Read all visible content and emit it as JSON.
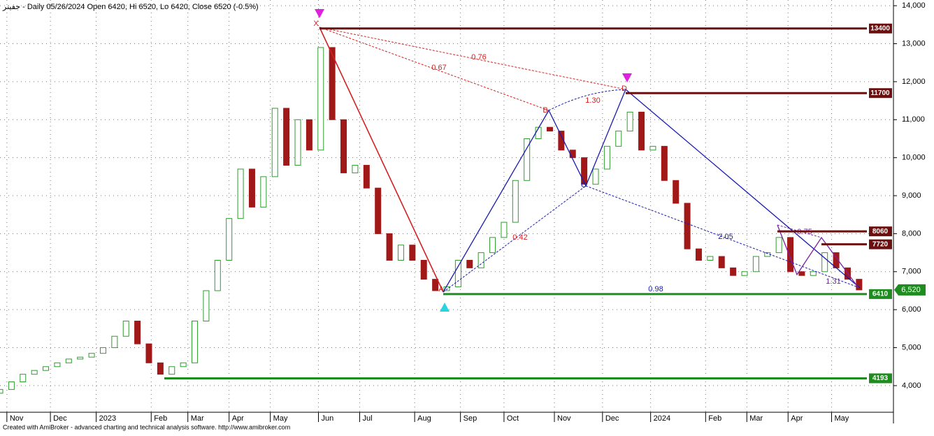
{
  "chart_data": {
    "type": "candlestick",
    "title": "جفینر - Daily 05/26/2024 Open 6420, Hi 6520, Lo 6420, Close 6520 (-0.5%)",
    "footer": "Created with AmiBroker - advanced charting and technical analysis software. http://www.amibroker.com",
    "x": [
      0,
      5,
      10,
      15,
      20,
      25,
      30,
      35,
      40,
      45,
      50,
      55,
      60,
      65,
      70,
      75,
      80,
      85,
      90,
      95,
      100,
      105,
      110,
      115,
      120,
      125,
      130,
      135,
      140,
      145,
      150,
      155,
      160,
      165,
      170,
      175,
      180,
      185,
      190,
      195,
      200,
      205,
      210,
      215,
      220,
      225,
      230,
      235,
      240,
      245,
      250,
      255,
      260,
      265,
      270,
      275,
      280,
      285,
      290,
      295,
      300,
      305,
      310,
      315,
      320,
      325,
      330,
      335,
      340,
      345,
      350,
      355,
      360,
      365,
      370,
      375
    ],
    "open": [
      3800,
      3900,
      4100,
      4300,
      4400,
      4500,
      4600,
      4700,
      4750,
      4850,
      5000,
      5300,
      5700,
      5100,
      4600,
      4300,
      4500,
      4600,
      5700,
      6500,
      7300,
      8400,
      9700,
      8700,
      9500,
      11300,
      9800,
      11000,
      10200,
      12900,
      11000,
      9600,
      9800,
      9200,
      8000,
      7300,
      7700,
      7300,
      6800,
      6500,
      6600,
      7300,
      7100,
      7500,
      7900,
      8300,
      9400,
      10500,
      10800,
      10700,
      10200,
      10000,
      9300,
      9700,
      10300,
      10700,
      11200,
      10200,
      10300,
      9400,
      8800,
      7600,
      7300,
      7400,
      7100,
      6900,
      7000,
      7400,
      7500,
      7900,
      7000,
      6900,
      7000,
      7500,
      7100,
      6800
    ],
    "close": [
      3900,
      4100,
      4300,
      4400,
      4500,
      4600,
      4700,
      4750,
      4850,
      5000,
      5300,
      5700,
      5100,
      4600,
      4300,
      4500,
      4600,
      5700,
      6500,
      7300,
      8400,
      9700,
      8700,
      9500,
      11300,
      9800,
      11000,
      10200,
      12900,
      11000,
      9600,
      9800,
      9200,
      8000,
      7300,
      7700,
      7300,
      6800,
      6500,
      6600,
      7300,
      7100,
      7500,
      7900,
      8300,
      9400,
      10500,
      10800,
      10700,
      10200,
      10000,
      9300,
      9700,
      10300,
      10700,
      11200,
      10200,
      10300,
      9400,
      8800,
      7600,
      7300,
      7400,
      7100,
      6900,
      7000,
      7400,
      7500,
      7900,
      7000,
      6900,
      7000,
      7500,
      7100,
      6800,
      6520
    ],
    "up_color": "#2e9e2e",
    "down_color": "#a01818",
    "xlim": [
      0,
      390
    ],
    "xticks": [
      {
        "value": 3,
        "label": "Nov"
      },
      {
        "value": 22,
        "label": "Dec"
      },
      {
        "value": 42,
        "label": "2023"
      },
      {
        "value": 66,
        "label": "Feb"
      },
      {
        "value": 82,
        "label": "Mar"
      },
      {
        "value": 100,
        "label": "Apr"
      },
      {
        "value": 118,
        "label": "May"
      },
      {
        "value": 139,
        "label": "Jun"
      },
      {
        "value": 157,
        "label": "Jul"
      },
      {
        "value": 181,
        "label": "Aug"
      },
      {
        "value": 201,
        "label": "Sep"
      },
      {
        "value": 220,
        "label": "Oct"
      },
      {
        "value": 242,
        "label": "Nov"
      },
      {
        "value": 263,
        "label": "Dec"
      },
      {
        "value": 284,
        "label": "2024"
      },
      {
        "value": 308,
        "label": "Feb"
      },
      {
        "value": 326,
        "label": "Mar"
      },
      {
        "value": 344,
        "label": "Apr"
      },
      {
        "value": 363,
        "label": "May"
      }
    ],
    "ylim": [
      3300,
      14150
    ],
    "yticks": [
      {
        "value": 4000,
        "label": "4,000"
      },
      {
        "value": 5000,
        "label": "5,000"
      },
      {
        "value": 6000,
        "label": "6,000"
      },
      {
        "value": 7000,
        "label": "7,000"
      },
      {
        "value": 8000,
        "label": "8,000"
      },
      {
        "value": 9000,
        "label": "9,000"
      },
      {
        "value": 10000,
        "label": "10,000"
      },
      {
        "value": 11000,
        "label": "11,000"
      },
      {
        "value": 12000,
        "label": "12,000"
      },
      {
        "value": 13000,
        "label": "13,000"
      },
      {
        "value": 14000,
        "label": "14,000"
      }
    ],
    "levels": [
      {
        "value": 13400,
        "color": "#6b0f0f"
      },
      {
        "value": 11700,
        "color": "#6b0f0f"
      },
      {
        "value": 8060,
        "color": "#6b0f0f"
      },
      {
        "value": 7720,
        "color": "#6b0f0f"
      },
      {
        "value": 6410,
        "color": "#1e8c1e"
      },
      {
        "value": 4193,
        "color": "#1e8c1e"
      }
    ],
    "last_price": {
      "value": 6520,
      "label": "6,520"
    },
    "ratios": [
      "0.76",
      "0.67",
      "1.30",
      "0.42",
      "2.05",
      "0.98",
      "0.75",
      "1.31"
    ],
    "points": [
      "X",
      "A",
      "B",
      "C",
      "D"
    ],
    "grid": true
  }
}
